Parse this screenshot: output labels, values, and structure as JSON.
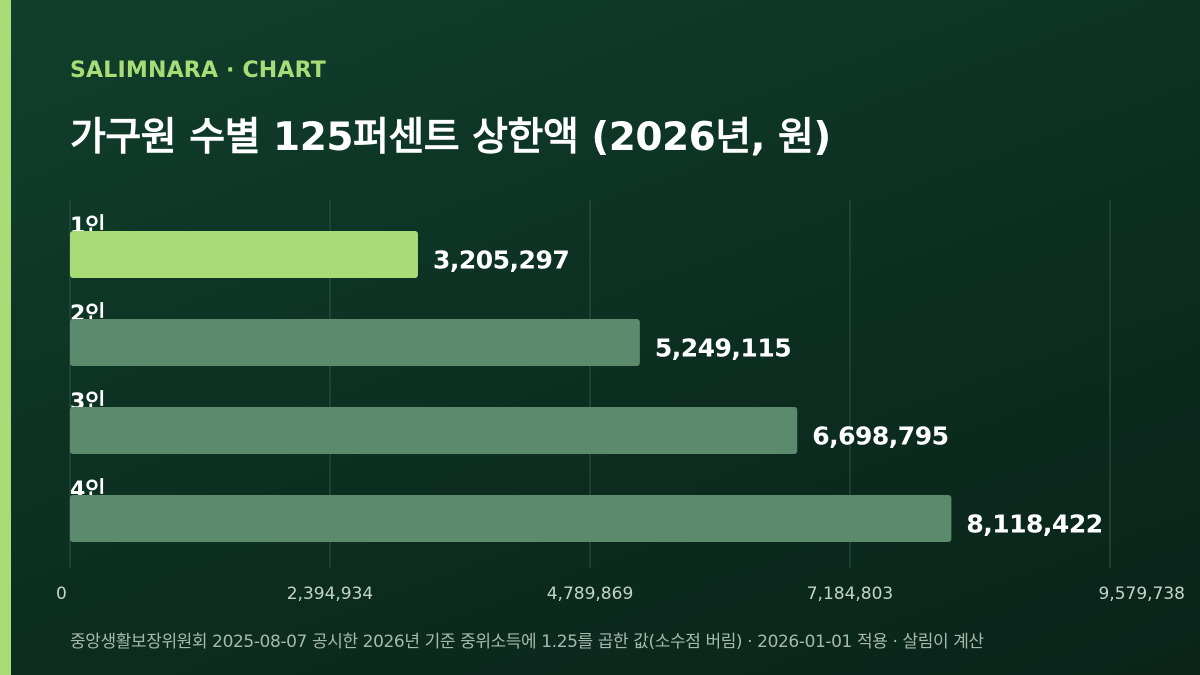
{
  "header": {
    "brand": "SALIMNARA · CHART",
    "title": "가구원 수별 125퍼센트 상한액 (2026년, 원)"
  },
  "footnote": "중앙생활보장위원회 2025-08-07 공시한 2026년 기준 중위소득에 1.25를 곱한 값(소수점 버림) · 2026-01-01 적용 · 살림이 계산",
  "colors": {
    "accent": "#a9dc76",
    "bar_default": "#5c8a6d",
    "background": "#0e3426",
    "grid": "#2f5544",
    "axis_text": "#c4d3c9"
  },
  "chart_data": {
    "type": "bar",
    "orientation": "horizontal",
    "categories": [
      "1인",
      "2인",
      "3인",
      "4인"
    ],
    "values": [
      3205297,
      5249115,
      6698795,
      8118422
    ],
    "value_labels": [
      "3,205,297",
      "5,249,115",
      "6,698,795",
      "8,118,422"
    ],
    "highlight_index": 0,
    "xlim": [
      0,
      9579738
    ],
    "xticks": [
      0,
      2394934,
      4789869,
      7184803,
      9579738
    ],
    "xtick_labels": [
      "0",
      "2,394,934",
      "4,789,869",
      "7,184,803",
      "9,579,738"
    ],
    "grid": true,
    "title": "",
    "xlabel": "",
    "ylabel": ""
  }
}
